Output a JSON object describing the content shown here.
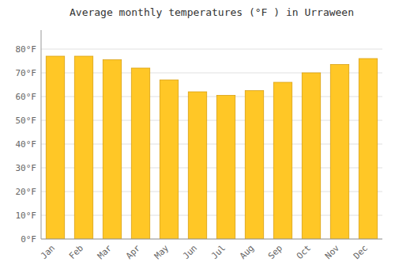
{
  "chart_data": {
    "type": "bar",
    "title": "Average monthly temperatures (°F ) in Urraween",
    "categories": [
      "Jan",
      "Feb",
      "Mar",
      "Apr",
      "May",
      "Jun",
      "Jul",
      "Aug",
      "Sep",
      "Oct",
      "Nov",
      "Dec"
    ],
    "values": [
      77,
      77,
      75.5,
      72,
      67,
      62,
      60.5,
      62.5,
      66,
      70,
      73.5,
      76
    ],
    "color": "#FFC726",
    "ylim": [
      0,
      88
    ],
    "yticks": [
      {
        "value": 0,
        "label": "0°F"
      },
      {
        "value": 10,
        "label": "10°F"
      },
      {
        "value": 20,
        "label": "20°F"
      },
      {
        "value": 30,
        "label": "30°F"
      },
      {
        "value": 40,
        "label": "40°F"
      },
      {
        "value": 50,
        "label": "50°F"
      },
      {
        "value": 60,
        "label": "60°F"
      },
      {
        "value": 70,
        "label": "70°F"
      },
      {
        "value": 80,
        "label": "80°F"
      }
    ],
    "grid": true
  }
}
